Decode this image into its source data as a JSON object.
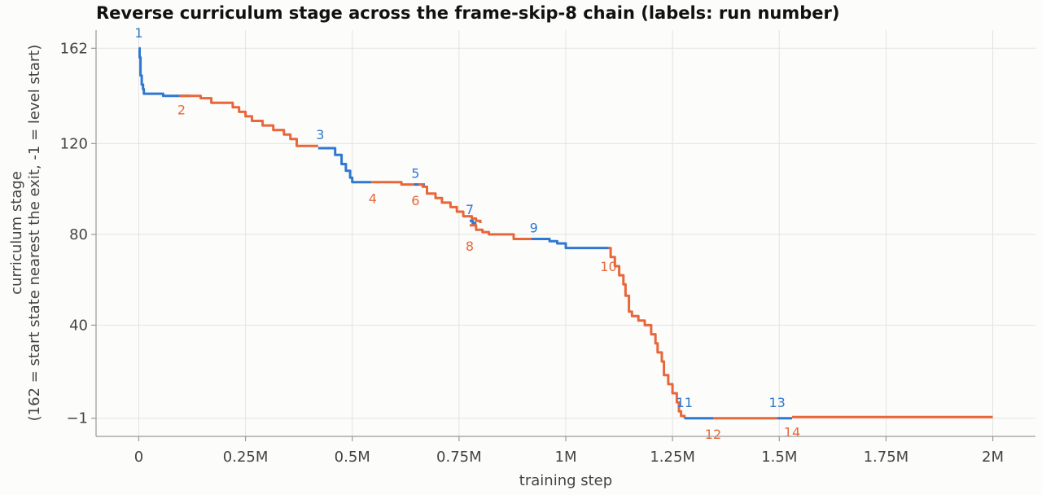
{
  "chart_data": {
    "type": "line",
    "title": "Reverse curriculum stage across the frame-skip-8 chain (labels: run number)",
    "xlabel": "training step",
    "ylabel_lines": [
      "curriculum stage",
      "(162 = start state nearest the exit, -1 = level start)"
    ],
    "xlim": [
      -100000,
      2100000
    ],
    "ylim": [
      -9,
      170
    ],
    "x_ticks": [
      {
        "value": 0,
        "label": "0"
      },
      {
        "value": 250000,
        "label": "0.25M"
      },
      {
        "value": 500000,
        "label": "0.5M"
      },
      {
        "value": 750000,
        "label": "0.75M"
      },
      {
        "value": 1000000,
        "label": "1M"
      },
      {
        "value": 1250000,
        "label": "1.25M"
      },
      {
        "value": 1500000,
        "label": "1.5M"
      },
      {
        "value": 1750000,
        "label": "1.75M"
      },
      {
        "value": 2000000,
        "label": "2M"
      }
    ],
    "y_ticks": [
      {
        "value": 162,
        "label": "162"
      },
      {
        "value": 120,
        "label": "120"
      },
      {
        "value": 80,
        "label": "80"
      },
      {
        "value": 40,
        "label": "40"
      },
      {
        "value": -1,
        "label": "−1"
      }
    ],
    "grid": true,
    "legend": "none",
    "colors": {
      "odd_runs": "#2f78d0",
      "even_runs": "#e8673a"
    },
    "series": [
      {
        "run": "1",
        "color": "#2f78d0",
        "points": [
          [
            0,
            162
          ],
          [
            2000,
            158
          ],
          [
            4000,
            150
          ],
          [
            7000,
            146
          ],
          [
            10000,
            144
          ],
          [
            12000,
            142
          ],
          [
            55000,
            142
          ],
          [
            57000,
            141
          ],
          [
            120000,
            141
          ]
        ]
      },
      {
        "run": "2",
        "color": "#e8673a",
        "points": [
          [
            95000,
            141
          ],
          [
            140000,
            141
          ],
          [
            145000,
            140
          ],
          [
            165000,
            140
          ],
          [
            170000,
            138
          ],
          [
            210000,
            138
          ],
          [
            220000,
            136
          ],
          [
            235000,
            134
          ],
          [
            250000,
            132
          ],
          [
            265000,
            130
          ],
          [
            290000,
            128
          ],
          [
            315000,
            126
          ],
          [
            340000,
            124
          ],
          [
            355000,
            122
          ],
          [
            370000,
            119
          ],
          [
            420000,
            119
          ]
        ]
      },
      {
        "run": "3",
        "color": "#2f78d0",
        "points": [
          [
            420000,
            118
          ],
          [
            450000,
            118
          ],
          [
            460000,
            115
          ],
          [
            475000,
            111
          ],
          [
            485000,
            108
          ],
          [
            495000,
            105
          ],
          [
            500000,
            103
          ],
          [
            545000,
            103
          ]
        ]
      },
      {
        "run": "4",
        "color": "#e8673a",
        "points": [
          [
            545000,
            103
          ],
          [
            610000,
            103
          ],
          [
            615000,
            102
          ],
          [
            655000,
            102
          ]
        ]
      },
      {
        "run": "5",
        "color": "#2f78d0",
        "points": [
          [
            645000,
            102
          ],
          [
            670000,
            102
          ]
        ]
      },
      {
        "run": "6",
        "color": "#e8673a",
        "points": [
          [
            655000,
            102
          ],
          [
            665000,
            101
          ],
          [
            675000,
            98
          ],
          [
            695000,
            96
          ],
          [
            710000,
            94
          ],
          [
            730000,
            92
          ],
          [
            745000,
            90
          ],
          [
            760000,
            88
          ],
          [
            780000,
            87
          ],
          [
            790000,
            86
          ],
          [
            800000,
            85
          ]
        ]
      },
      {
        "run": "7",
        "color": "#2f78d0",
        "points": [
          [
            775000,
            86
          ],
          [
            782000,
            85
          ],
          [
            788000,
            84
          ]
        ]
      },
      {
        "run": "8",
        "color": "#e8673a",
        "points": [
          [
            775000,
            84
          ],
          [
            790000,
            82
          ],
          [
            805000,
            81
          ],
          [
            820000,
            80
          ],
          [
            870000,
            80
          ],
          [
            878000,
            78
          ],
          [
            920000,
            78
          ]
        ]
      },
      {
        "run": "9",
        "color": "#2f78d0",
        "points": [
          [
            920000,
            78
          ],
          [
            955000,
            78
          ],
          [
            962000,
            77
          ],
          [
            975000,
            77
          ],
          [
            980000,
            76
          ],
          [
            995000,
            76
          ],
          [
            1000000,
            74
          ],
          [
            1100000,
            74
          ]
        ]
      },
      {
        "run": "10",
        "color": "#e8673a",
        "points": [
          [
            1100000,
            74
          ],
          [
            1105000,
            70
          ],
          [
            1115000,
            66
          ],
          [
            1125000,
            62
          ],
          [
            1135000,
            58
          ],
          [
            1140000,
            53
          ],
          [
            1148000,
            46
          ],
          [
            1155000,
            44
          ],
          [
            1170000,
            42
          ],
          [
            1185000,
            40
          ],
          [
            1200000,
            36
          ],
          [
            1210000,
            32
          ],
          [
            1215000,
            28
          ],
          [
            1225000,
            24
          ],
          [
            1230000,
            18
          ],
          [
            1240000,
            14
          ],
          [
            1250000,
            10
          ],
          [
            1260000,
            6
          ],
          [
            1265000,
            2
          ],
          [
            1270000,
            0
          ],
          [
            1278000,
            -1
          ]
        ]
      },
      {
        "run": "11",
        "color": "#2f78d0",
        "points": [
          [
            1278000,
            -1
          ],
          [
            1345000,
            -1
          ]
        ]
      },
      {
        "run": "12",
        "color": "#e8673a",
        "points": [
          [
            1345000,
            -1
          ],
          [
            1495000,
            -1
          ]
        ]
      },
      {
        "run": "13",
        "color": "#2f78d0",
        "points": [
          [
            1495000,
            -1
          ],
          [
            1530000,
            -1
          ]
        ]
      },
      {
        "run": "14",
        "color": "#e8673a",
        "points": [
          [
            1530000,
            -0.5
          ],
          [
            2000000,
            -0.5
          ]
        ]
      }
    ],
    "run_labels": [
      {
        "text": "1",
        "x": 0,
        "y": 169,
        "color": "#2f78d0"
      },
      {
        "text": "2",
        "x": 100000,
        "y": 135,
        "color": "#e8673a"
      },
      {
        "text": "3",
        "x": 425000,
        "y": 124,
        "color": "#2f78d0"
      },
      {
        "text": "4",
        "x": 548000,
        "y": 96,
        "color": "#e8673a"
      },
      {
        "text": "5",
        "x": 648000,
        "y": 107,
        "color": "#2f78d0"
      },
      {
        "text": "6",
        "x": 648000,
        "y": 95,
        "color": "#e8673a"
      },
      {
        "text": "7",
        "x": 775000,
        "y": 91,
        "color": "#2f78d0"
      },
      {
        "text": "8",
        "x": 775000,
        "y": 75,
        "color": "#e8673a"
      },
      {
        "text": "9",
        "x": 925000,
        "y": 83,
        "color": "#2f78d0"
      },
      {
        "text": "10",
        "x": 1100000,
        "y": 66,
        "color": "#e8673a"
      },
      {
        "text": "11",
        "x": 1278000,
        "y": 6,
        "color": "#2f78d0"
      },
      {
        "text": "12",
        "x": 1345000,
        "y": -8,
        "color": "#e8673a"
      },
      {
        "text": "13",
        "x": 1495000,
        "y": 6,
        "color": "#2f78d0"
      },
      {
        "text": "14",
        "x": 1530000,
        "y": -7,
        "color": "#e8673a"
      }
    ]
  }
}
